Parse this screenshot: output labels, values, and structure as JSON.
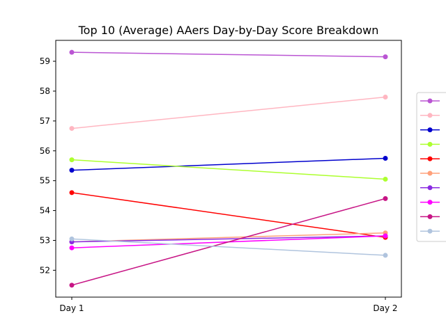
{
  "chart_data": {
    "type": "line",
    "title": "Top 10 (Average) AAers Day-by-Day Score Breakdown",
    "xlabel": "",
    "ylabel": "",
    "categories": [
      "Day 1",
      "Day 2"
    ],
    "ylim": [
      51.1,
      59.7
    ],
    "yticks": [
      52,
      53,
      54,
      55,
      56,
      57,
      58,
      59
    ],
    "grid": false,
    "legend": "right, entries unlabeled",
    "series": [
      {
        "color": "#ba55d3",
        "values": [
          59.3,
          59.15
        ]
      },
      {
        "color": "#ffb6c1",
        "values": [
          56.75,
          57.8
        ]
      },
      {
        "color": "#0000cd",
        "values": [
          55.35,
          55.75
        ]
      },
      {
        "color": "#adff2f",
        "values": [
          55.7,
          55.05
        ]
      },
      {
        "color": "#ff0000",
        "values": [
          54.6,
          53.1
        ]
      },
      {
        "color": "#ffa07a",
        "values": [
          52.95,
          53.25
        ]
      },
      {
        "color": "#8a2be2",
        "values": [
          52.95,
          53.15
        ]
      },
      {
        "color": "#ff00ff",
        "values": [
          52.75,
          53.15
        ]
      },
      {
        "color": "#c71585",
        "values": [
          51.5,
          54.4
        ]
      },
      {
        "color": "#b0c4de",
        "values": [
          53.05,
          52.5
        ]
      }
    ]
  }
}
